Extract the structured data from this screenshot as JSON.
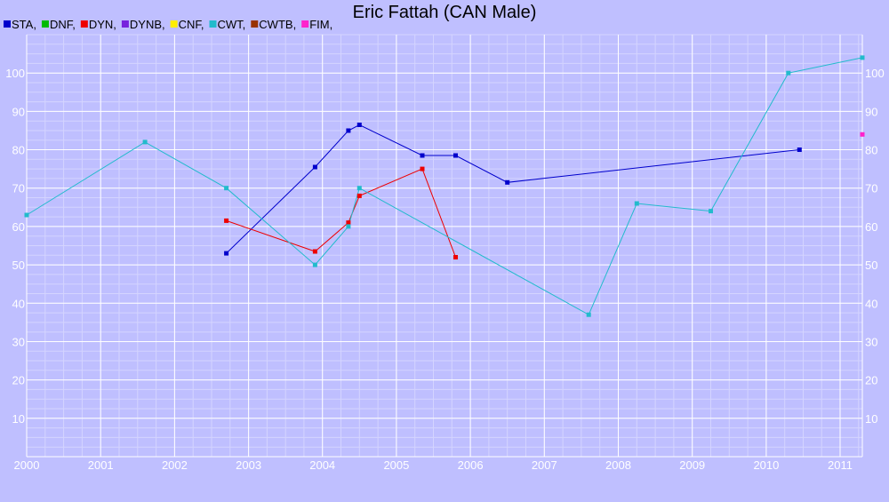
{
  "chart_data": {
    "type": "line",
    "title": "Eric Fattah (CAN Male)",
    "xlabel": "",
    "ylabel": "",
    "xlim": [
      2000.0,
      2011.3
    ],
    "ylim": [
      0,
      110
    ],
    "x_ticks": [
      2000,
      2001,
      2002,
      2003,
      2004,
      2005,
      2006,
      2007,
      2008,
      2009,
      2010,
      2011
    ],
    "y_ticks": [
      10,
      20,
      30,
      40,
      50,
      60,
      70,
      80,
      90,
      100
    ],
    "grid": true,
    "legend_position": "top-left",
    "series": [
      {
        "name": "STA,",
        "color": "#0000cc",
        "x": [
          2002.7,
          2003.9,
          2004.35,
          2004.5,
          2005.35,
          2005.8,
          2006.5,
          2010.45
        ],
        "y": [
          53,
          75.5,
          85,
          86.5,
          78.5,
          78.5,
          71.5,
          80
        ]
      },
      {
        "name": "DNF,",
        "color": "#00bb00",
        "x": [],
        "y": []
      },
      {
        "name": "DYN,",
        "color": "#ee0000",
        "x": [
          2002.7,
          2003.9,
          2004.35,
          2004.5,
          2005.35,
          2005.8
        ],
        "y": [
          61.5,
          53.5,
          61,
          68,
          75,
          52
        ]
      },
      {
        "name": "DYNB,",
        "color": "#7722dd",
        "x": [],
        "y": []
      },
      {
        "name": "CNF,",
        "color": "#ffee00",
        "x": [],
        "y": []
      },
      {
        "name": "CWT,",
        "color": "#22bbcc",
        "x": [
          2000.0,
          2001.6,
          2002.7,
          2003.9,
          2004.35,
          2004.5,
          2007.6,
          2008.25,
          2009.25,
          2010.3,
          2011.3
        ],
        "y": [
          63,
          82,
          70,
          50,
          60,
          70,
          37,
          66,
          64,
          100,
          104
        ]
      },
      {
        "name": "CWTB,",
        "color": "#993300",
        "x": [],
        "y": []
      },
      {
        "name": "FIM,",
        "color": "#ff22cc",
        "x": [
          2011.3
        ],
        "y": [
          84
        ]
      }
    ]
  }
}
